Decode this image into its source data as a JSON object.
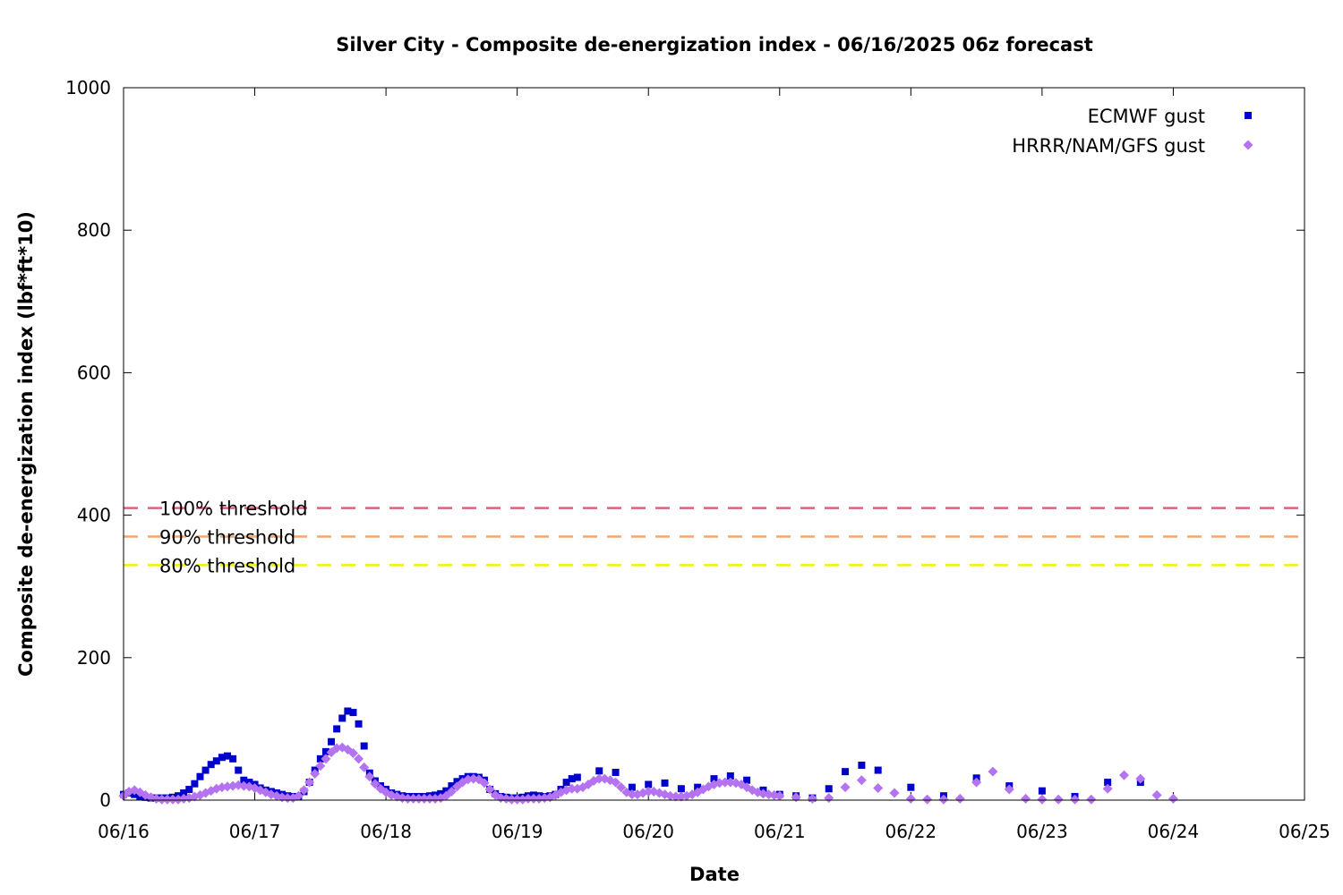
{
  "chart_data": {
    "type": "scatter",
    "title": "Silver City - Composite de-energization index - 06/16/2025 06z forecast",
    "xlabel": "Date",
    "ylabel": "Composite de-energization index (lbf*ft*10)",
    "xlim": [
      "06/16",
      "06/25"
    ],
    "ylim": [
      0,
      1000
    ],
    "x_ticks": [
      "06/16",
      "06/17",
      "06/18",
      "06/19",
      "06/20",
      "06/21",
      "06/22",
      "06/23",
      "06/24",
      "06/25"
    ],
    "y_ticks": [
      "0",
      "200",
      "400",
      "600",
      "800",
      "1000"
    ],
    "grid": false,
    "legend_position": "top-right",
    "thresholds": [
      {
        "label": "100% threshold",
        "value": 410,
        "color": "#e0607e"
      },
      {
        "label": "90% threshold",
        "value": 370,
        "color": "#f4a66d"
      },
      {
        "label": "80% threshold",
        "value": 330,
        "color": "#f2f200"
      }
    ],
    "series": [
      {
        "name": "ECMWF gust",
        "marker": "square",
        "color": "#0000cc",
        "points": [
          [
            "06/16 00:00",
            8
          ],
          [
            "06/16 01:00",
            10
          ],
          [
            "06/16 02:00",
            8
          ],
          [
            "06/16 03:00",
            5
          ],
          [
            "06/16 04:00",
            4
          ],
          [
            "06/16 05:00",
            3
          ],
          [
            "06/16 06:00",
            3
          ],
          [
            "06/16 07:00",
            3
          ],
          [
            "06/16 08:00",
            3
          ],
          [
            "06/16 09:00",
            4
          ],
          [
            "06/16 10:00",
            6
          ],
          [
            "06/16 11:00",
            10
          ],
          [
            "06/16 12:00",
            15
          ],
          [
            "06/16 13:00",
            23
          ],
          [
            "06/16 14:00",
            33
          ],
          [
            "06/16 15:00",
            42
          ],
          [
            "06/16 16:00",
            50
          ],
          [
            "06/16 17:00",
            55
          ],
          [
            "06/16 18:00",
            60
          ],
          [
            "06/16 19:00",
            62
          ],
          [
            "06/16 20:00",
            58
          ],
          [
            "06/16 21:00",
            42
          ],
          [
            "06/16 22:00",
            28
          ],
          [
            "06/16 23:00",
            25
          ],
          [
            "06/17 00:00",
            22
          ],
          [
            "06/17 01:00",
            17
          ],
          [
            "06/17 02:00",
            14
          ],
          [
            "06/17 03:00",
            12
          ],
          [
            "06/17 04:00",
            10
          ],
          [
            "06/17 05:00",
            8
          ],
          [
            "06/17 06:00",
            6
          ],
          [
            "06/17 07:00",
            5
          ],
          [
            "06/17 08:00",
            5
          ],
          [
            "06/17 09:00",
            12
          ],
          [
            "06/17 10:00",
            25
          ],
          [
            "06/17 11:00",
            42
          ],
          [
            "06/17 12:00",
            58
          ],
          [
            "06/17 13:00",
            68
          ],
          [
            "06/17 14:00",
            82
          ],
          [
            "06/17 15:00",
            100
          ],
          [
            "06/17 16:00",
            115
          ],
          [
            "06/17 17:00",
            125
          ],
          [
            "06/17 18:00",
            123
          ],
          [
            "06/17 19:00",
            107
          ],
          [
            "06/17 20:00",
            76
          ],
          [
            "06/17 21:00",
            38
          ],
          [
            "06/17 22:00",
            27
          ],
          [
            "06/17 23:00",
            20
          ],
          [
            "06/18 00:00",
            15
          ],
          [
            "06/18 01:00",
            10
          ],
          [
            "06/18 02:00",
            8
          ],
          [
            "06/18 03:00",
            6
          ],
          [
            "06/18 04:00",
            5
          ],
          [
            "06/18 05:00",
            5
          ],
          [
            "06/18 06:00",
            5
          ],
          [
            "06/18 07:00",
            5
          ],
          [
            "06/18 08:00",
            6
          ],
          [
            "06/18 09:00",
            7
          ],
          [
            "06/18 10:00",
            9
          ],
          [
            "06/18 11:00",
            13
          ],
          [
            "06/18 12:00",
            20
          ],
          [
            "06/18 13:00",
            26
          ],
          [
            "06/18 14:00",
            30
          ],
          [
            "06/18 15:00",
            33
          ],
          [
            "06/18 16:00",
            33
          ],
          [
            "06/18 17:00",
            32
          ],
          [
            "06/18 18:00",
            28
          ],
          [
            "06/18 19:00",
            15
          ],
          [
            "06/18 20:00",
            9
          ],
          [
            "06/18 21:00",
            5
          ],
          [
            "06/18 22:00",
            4
          ],
          [
            "06/18 23:00",
            3
          ],
          [
            "06/19 00:00",
            3
          ],
          [
            "06/19 01:00",
            4
          ],
          [
            "06/19 02:00",
            6
          ],
          [
            "06/19 03:00",
            7
          ],
          [
            "06/19 04:00",
            6
          ],
          [
            "06/19 05:00",
            5
          ],
          [
            "06/19 06:00",
            6
          ],
          [
            "06/19 07:00",
            8
          ],
          [
            "06/19 08:00",
            15
          ],
          [
            "06/19 09:00",
            25
          ],
          [
            "06/19 10:00",
            30
          ],
          [
            "06/19 11:00",
            32
          ],
          [
            "06/19 15:00",
            41
          ],
          [
            "06/19 18:00",
            39
          ],
          [
            "06/19 21:00",
            18
          ],
          [
            "06/20 00:00",
            22
          ],
          [
            "06/20 03:00",
            24
          ],
          [
            "06/20 06:00",
            16
          ],
          [
            "06/20 09:00",
            18
          ],
          [
            "06/20 12:00",
            30
          ],
          [
            "06/20 15:00",
            34
          ],
          [
            "06/20 18:00",
            28
          ],
          [
            "06/20 21:00",
            14
          ],
          [
            "06/21 00:00",
            8
          ],
          [
            "06/21 03:00",
            6
          ],
          [
            "06/21 06:00",
            3
          ],
          [
            "06/21 09:00",
            16
          ],
          [
            "06/21 12:00",
            40
          ],
          [
            "06/21 15:00",
            49
          ],
          [
            "06/21 18:00",
            42
          ],
          [
            "06/22 00:00",
            18
          ],
          [
            "06/22 06:00",
            6
          ],
          [
            "06/22 12:00",
            31
          ],
          [
            "06/22 18:00",
            20
          ],
          [
            "06/23 00:00",
            13
          ],
          [
            "06/23 06:00",
            5
          ],
          [
            "06/23 12:00",
            25
          ],
          [
            "06/23 18:00",
            25
          ]
        ]
      },
      {
        "name": "HRRR/NAM/GFS gust",
        "marker": "diamond",
        "color": "#b473f0",
        "points": [
          [
            "06/16 00:00",
            6
          ],
          [
            "06/16 01:00",
            12
          ],
          [
            "06/16 02:00",
            14
          ],
          [
            "06/16 03:00",
            11
          ],
          [
            "06/16 04:00",
            7
          ],
          [
            "06/16 05:00",
            4
          ],
          [
            "06/16 06:00",
            2
          ],
          [
            "06/16 07:00",
            1
          ],
          [
            "06/16 08:00",
            1
          ],
          [
            "06/16 09:00",
            1
          ],
          [
            "06/16 10:00",
            1
          ],
          [
            "06/16 11:00",
            2
          ],
          [
            "06/16 12:00",
            3
          ],
          [
            "06/16 13:00",
            5
          ],
          [
            "06/16 14:00",
            7
          ],
          [
            "06/16 15:00",
            10
          ],
          [
            "06/16 16:00",
            13
          ],
          [
            "06/16 17:00",
            16
          ],
          [
            "06/16 18:00",
            18
          ],
          [
            "06/16 19:00",
            19
          ],
          [
            "06/16 20:00",
            20
          ],
          [
            "06/16 21:00",
            21
          ],
          [
            "06/16 22:00",
            20
          ],
          [
            "06/16 23:00",
            19
          ],
          [
            "06/17 00:00",
            17
          ],
          [
            "06/17 01:00",
            14
          ],
          [
            "06/17 02:00",
            11
          ],
          [
            "06/17 03:00",
            8
          ],
          [
            "06/17 04:00",
            6
          ],
          [
            "06/17 05:00",
            4
          ],
          [
            "06/17 06:00",
            3
          ],
          [
            "06/17 07:00",
            3
          ],
          [
            "06/17 08:00",
            6
          ],
          [
            "06/17 09:00",
            14
          ],
          [
            "06/17 10:00",
            25
          ],
          [
            "06/17 11:00",
            37
          ],
          [
            "06/17 12:00",
            48
          ],
          [
            "06/17 13:00",
            58
          ],
          [
            "06/17 14:00",
            67
          ],
          [
            "06/17 15:00",
            73
          ],
          [
            "06/17 16:00",
            74
          ],
          [
            "06/17 17:00",
            71
          ],
          [
            "06/17 18:00",
            66
          ],
          [
            "06/17 19:00",
            58
          ],
          [
            "06/17 20:00",
            46
          ],
          [
            "06/17 21:00",
            33
          ],
          [
            "06/17 22:00",
            23
          ],
          [
            "06/17 23:00",
            16
          ],
          [
            "06/18 00:00",
            11
          ],
          [
            "06/18 01:00",
            7
          ],
          [
            "06/18 02:00",
            5
          ],
          [
            "06/18 03:00",
            3
          ],
          [
            "06/18 04:00",
            2
          ],
          [
            "06/18 05:00",
            2
          ],
          [
            "06/18 06:00",
            2
          ],
          [
            "06/18 07:00",
            2
          ],
          [
            "06/18 08:00",
            2
          ],
          [
            "06/18 09:00",
            2
          ],
          [
            "06/18 10:00",
            3
          ],
          [
            "06/18 11:00",
            6
          ],
          [
            "06/18 12:00",
            12
          ],
          [
            "06/18 13:00",
            19
          ],
          [
            "06/18 14:00",
            25
          ],
          [
            "06/18 15:00",
            29
          ],
          [
            "06/18 16:00",
            30
          ],
          [
            "06/18 17:00",
            29
          ],
          [
            "06/18 18:00",
            24
          ],
          [
            "06/18 19:00",
            15
          ],
          [
            "06/18 20:00",
            7
          ],
          [
            "06/18 21:00",
            3
          ],
          [
            "06/18 22:00",
            2
          ],
          [
            "06/18 23:00",
            1
          ],
          [
            "06/19 00:00",
            1
          ],
          [
            "06/19 01:00",
            1
          ],
          [
            "06/19 02:00",
            2
          ],
          [
            "06/19 03:00",
            2
          ],
          [
            "06/19 04:00",
            2
          ],
          [
            "06/19 05:00",
            3
          ],
          [
            "06/19 06:00",
            4
          ],
          [
            "06/19 07:00",
            7
          ],
          [
            "06/19 08:00",
            11
          ],
          [
            "06/19 09:00",
            14
          ],
          [
            "06/19 10:00",
            16
          ],
          [
            "06/19 11:00",
            16
          ],
          [
            "06/19 12:00",
            18
          ],
          [
            "06/19 13:00",
            22
          ],
          [
            "06/19 14:00",
            27
          ],
          [
            "06/19 15:00",
            30
          ],
          [
            "06/19 16:00",
            30
          ],
          [
            "06/19 17:00",
            28
          ],
          [
            "06/19 18:00",
            25
          ],
          [
            "06/19 19:00",
            18
          ],
          [
            "06/19 20:00",
            11
          ],
          [
            "06/19 21:00",
            8
          ],
          [
            "06/19 22:00",
            8
          ],
          [
            "06/19 23:00",
            10
          ],
          [
            "06/20 00:00",
            12
          ],
          [
            "06/20 01:00",
            12
          ],
          [
            "06/20 02:00",
            10
          ],
          [
            "06/20 03:00",
            8
          ],
          [
            "06/20 04:00",
            6
          ],
          [
            "06/20 05:00",
            5
          ],
          [
            "06/20 06:00",
            5
          ],
          [
            "06/20 07:00",
            6
          ],
          [
            "06/20 08:00",
            8
          ],
          [
            "06/20 09:00",
            11
          ],
          [
            "06/20 10:00",
            15
          ],
          [
            "06/20 11:00",
            19
          ],
          [
            "06/20 12:00",
            22
          ],
          [
            "06/20 13:00",
            24
          ],
          [
            "06/20 14:00",
            25
          ],
          [
            "06/20 15:00",
            25
          ],
          [
            "06/20 16:00",
            24
          ],
          [
            "06/20 17:00",
            22
          ],
          [
            "06/20 18:00",
            18
          ],
          [
            "06/20 19:00",
            14
          ],
          [
            "06/20 20:00",
            11
          ],
          [
            "06/20 21:00",
            9
          ],
          [
            "06/20 22:00",
            8
          ],
          [
            "06/20 23:00",
            7
          ],
          [
            "06/21 00:00",
            6
          ],
          [
            "06/21 03:00",
            4
          ],
          [
            "06/21 06:00",
            2
          ],
          [
            "06/21 09:00",
            3
          ],
          [
            "06/21 12:00",
            18
          ],
          [
            "06/21 15:00",
            28
          ],
          [
            "06/21 18:00",
            17
          ],
          [
            "06/21 21:00",
            10
          ],
          [
            "06/22 00:00",
            2
          ],
          [
            "06/22 03:00",
            1
          ],
          [
            "06/22 06:00",
            1
          ],
          [
            "06/22 09:00",
            2
          ],
          [
            "06/22 12:00",
            25
          ],
          [
            "06/22 15:00",
            40
          ],
          [
            "06/22 18:00",
            15
          ],
          [
            "06/22 21:00",
            2
          ],
          [
            "06/23 00:00",
            1
          ],
          [
            "06/23 03:00",
            1
          ],
          [
            "06/23 06:00",
            1
          ],
          [
            "06/23 09:00",
            1
          ],
          [
            "06/23 12:00",
            16
          ],
          [
            "06/23 15:00",
            35
          ],
          [
            "06/23 18:00",
            30
          ],
          [
            "06/23 21:00",
            7
          ],
          [
            "06/24 00:00",
            2
          ]
        ]
      }
    ]
  }
}
